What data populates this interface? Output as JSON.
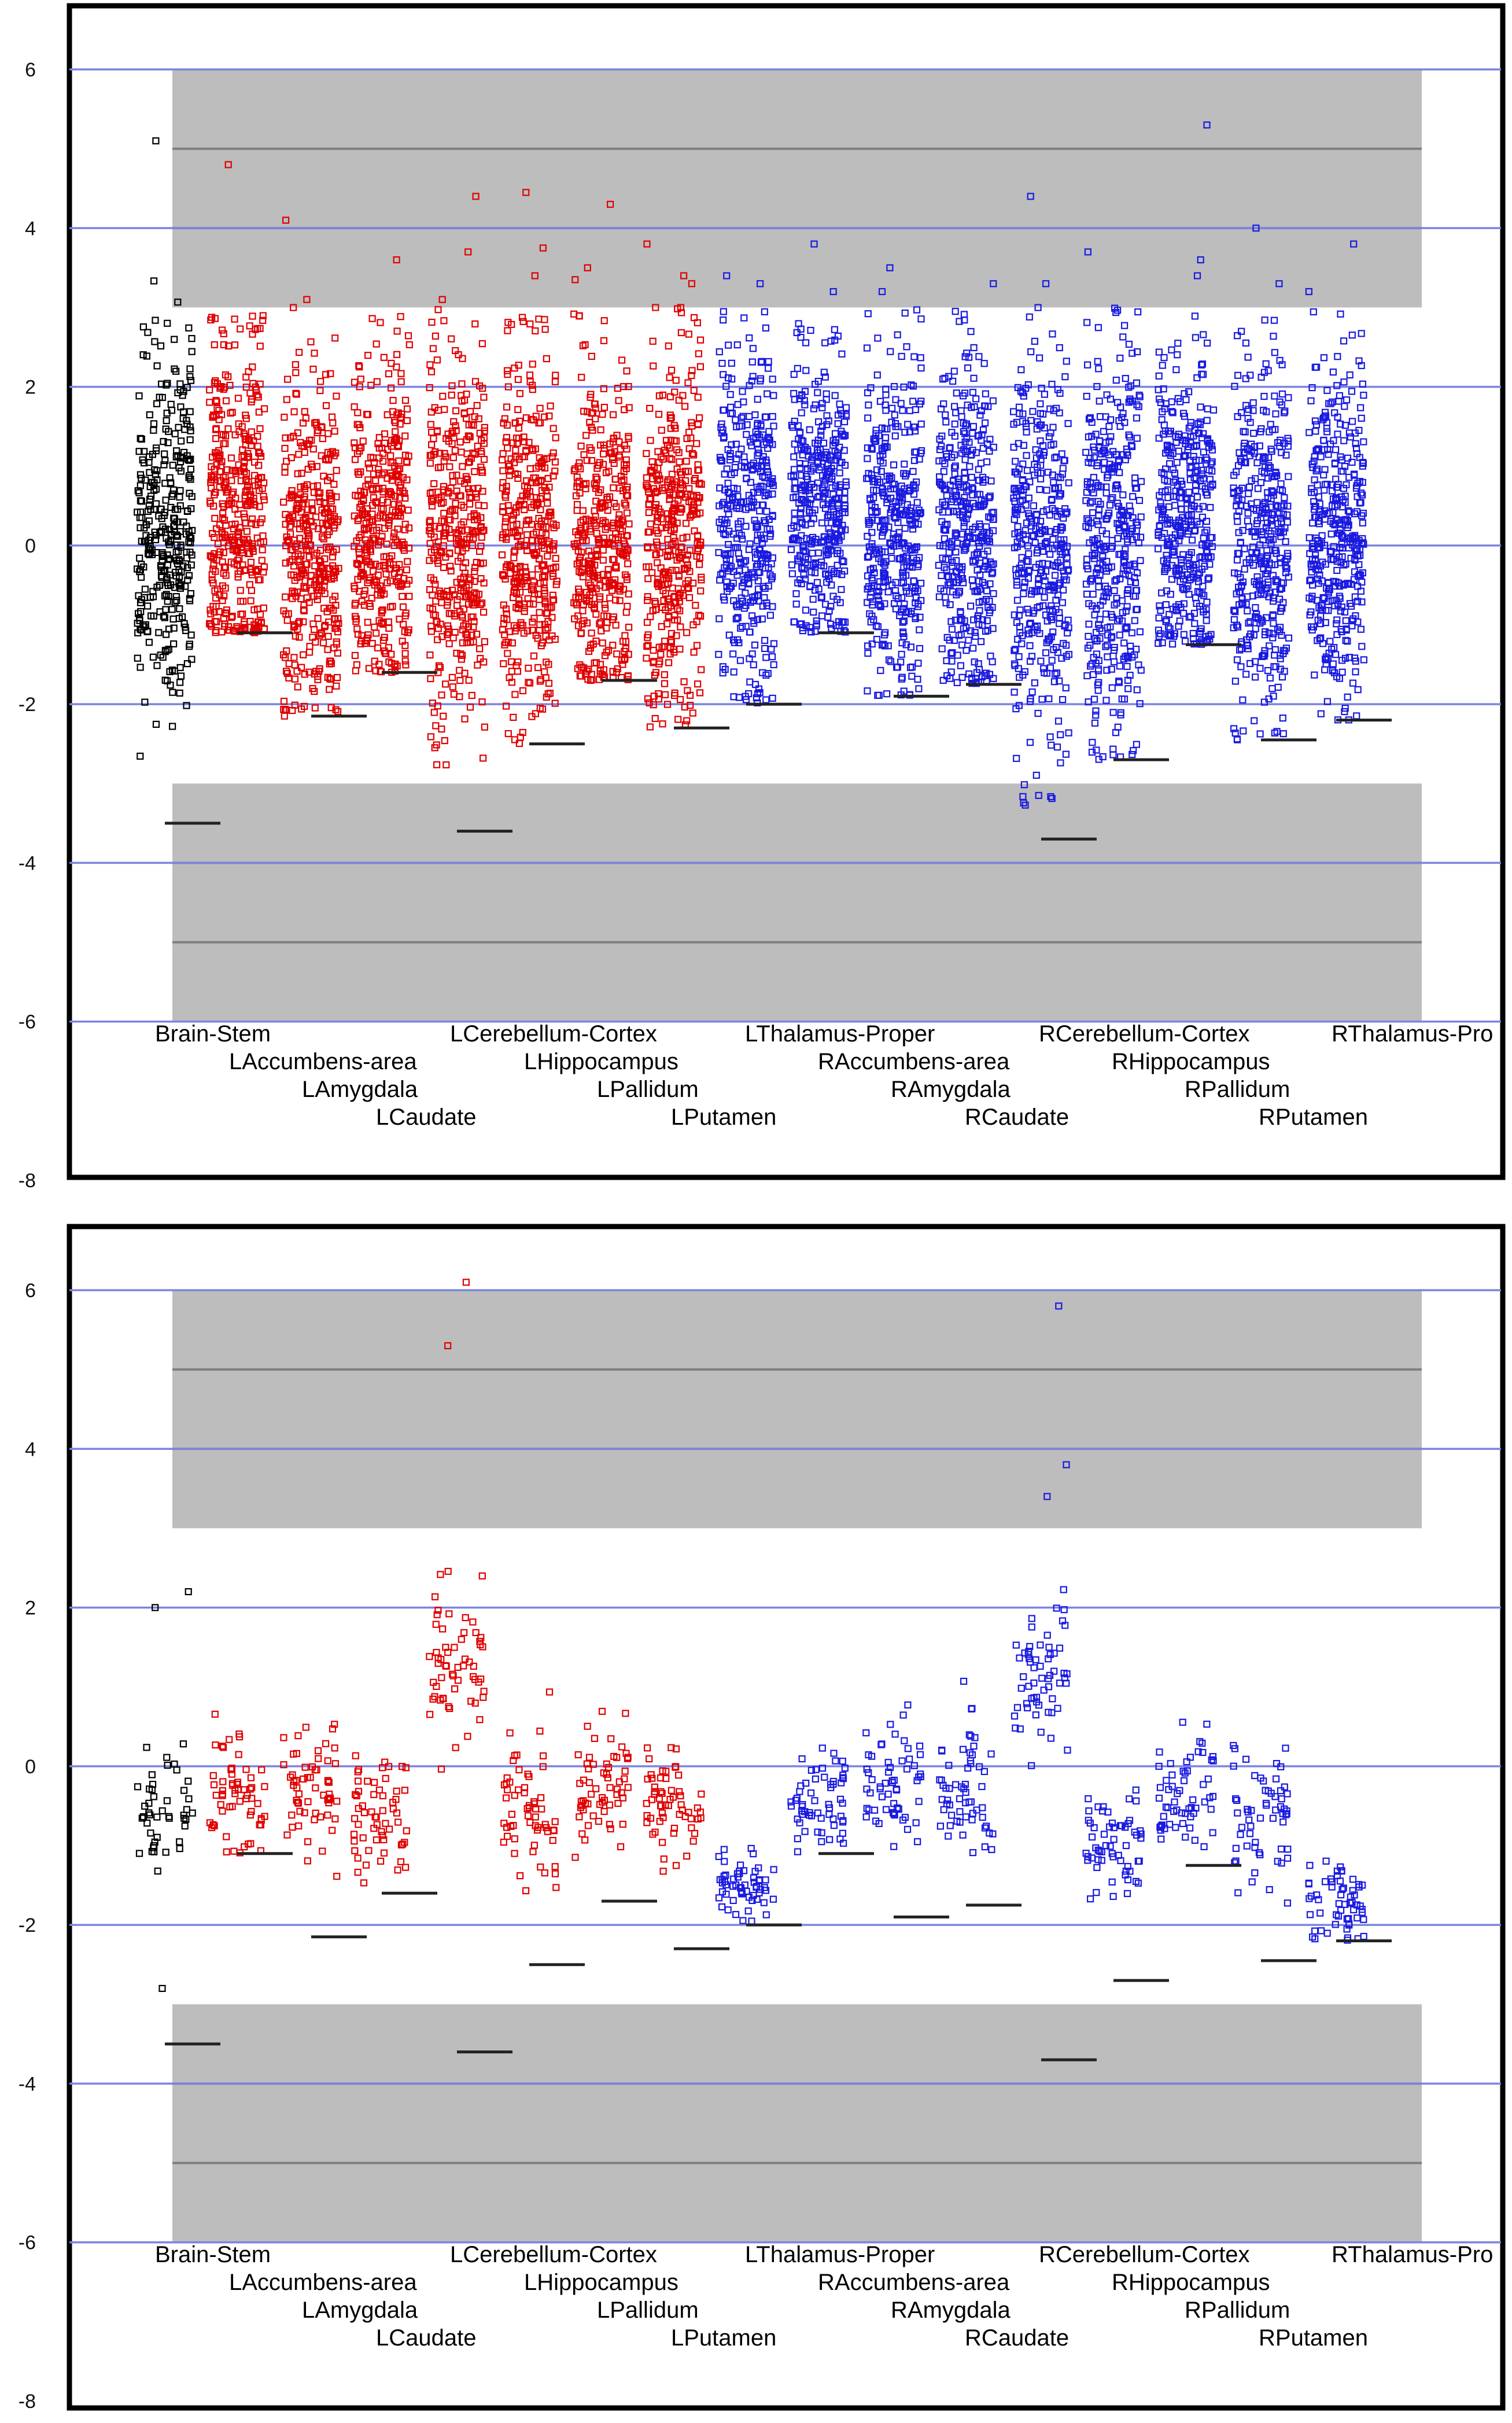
{
  "chart_data": [
    {
      "type": "scatter",
      "title": "",
      "xlabel": "",
      "ylabel": "",
      "ylim": [
        -8,
        6
      ],
      "yticks": [
        6,
        4,
        2,
        0,
        -2,
        -4,
        -6,
        -8
      ],
      "grid": true,
      "shaded_bands": [
        [
          3,
          6
        ],
        [
          -6,
          -3
        ]
      ],
      "band_lines": [
        5,
        4,
        -4,
        -5
      ],
      "categories": [
        "Brain-Stem",
        "LAccumbens-area",
        "LAmygdala",
        "LCaudate",
        "LCerebellum-Cortex",
        "LHippocampus",
        "LPallidum",
        "LPutamen",
        "LThalamus-Proper",
        "RAccumbens-area",
        "RAmygdala",
        "RCaudate",
        "RCerebellum-Cortex",
        "RHippocampus",
        "RPallidum",
        "RPutamen",
        "RThalamus-Pro"
      ],
      "category_colors": [
        "#000000",
        "#e00000",
        "#e00000",
        "#e00000",
        "#e00000",
        "#e00000",
        "#e00000",
        "#e00000",
        "#1a1ae0",
        "#1a1ae0",
        "#1a1ae0",
        "#1a1ae0",
        "#1a1ae0",
        "#1a1ae0",
        "#1a1ae0",
        "#1a1ae0",
        "#1a1ae0"
      ],
      "thresholds": [
        -3.5,
        -1.1,
        -2.15,
        -1.6,
        -3.6,
        -2.5,
        -1.7,
        -2.3,
        -2.0,
        -1.1,
        -1.9,
        -1.75,
        -3.7,
        -2.7,
        -1.25,
        -2.45,
        -2.2
      ],
      "series": [
        {
          "name": "",
          "distribution": {
            "center": 0.2,
            "spread_low": 1.3,
            "spread_high": 1.6,
            "min": -3.4,
            "max": 3.5
          },
          "count": 340,
          "outliers": [
            5.1
          ]
        },
        {
          "name": "",
          "distribution": {
            "center": 0.3,
            "spread_low": 1.4,
            "spread_high": 1.5,
            "min": -1.1,
            "max": 2.9
          },
          "count": 380,
          "outliers": [
            4.8
          ]
        },
        {
          "name": "",
          "distribution": {
            "center": 0.0,
            "spread_low": 1.5,
            "spread_high": 1.5,
            "min": -2.15,
            "max": 3.0
          },
          "count": 380,
          "outliers": [
            4.1,
            3.1
          ]
        },
        {
          "name": "",
          "distribution": {
            "center": 0.2,
            "spread_low": 1.4,
            "spread_high": 1.5,
            "min": -1.6,
            "max": 3.0
          },
          "count": 380,
          "outliers": [
            3.6
          ]
        },
        {
          "name": "",
          "distribution": {
            "center": 0.0,
            "spread_low": 1.6,
            "spread_high": 1.6,
            "min": -2.8,
            "max": 3.0
          },
          "count": 380,
          "outliers": [
            4.4,
            3.7,
            3.1
          ]
        },
        {
          "name": "",
          "distribution": {
            "center": 0.1,
            "spread_low": 1.5,
            "spread_high": 1.5,
            "min": -2.5,
            "max": 2.9
          },
          "count": 380,
          "outliers": [
            4.45,
            3.75,
            3.4
          ]
        },
        {
          "name": "",
          "distribution": {
            "center": 0.1,
            "spread_low": 1.4,
            "spread_high": 1.5,
            "min": -1.7,
            "max": 3.0
          },
          "count": 380,
          "outliers": [
            4.3,
            3.5,
            3.35
          ]
        },
        {
          "name": "",
          "distribution": {
            "center": 0.1,
            "spread_low": 1.5,
            "spread_high": 1.5,
            "min": -2.3,
            "max": 3.0
          },
          "count": 380,
          "outliers": [
            3.8,
            3.3,
            3.4
          ]
        },
        {
          "name": "",
          "distribution": {
            "center": 0.3,
            "spread_low": 1.4,
            "spread_high": 1.5,
            "min": -2.0,
            "max": 3.0
          },
          "count": 380,
          "outliers": [
            3.4,
            3.3
          ]
        },
        {
          "name": "",
          "distribution": {
            "center": 0.4,
            "spread_low": 1.4,
            "spread_high": 1.4,
            "min": -1.1,
            "max": 2.8
          },
          "count": 380,
          "outliers": [
            3.8,
            3.2
          ]
        },
        {
          "name": "",
          "distribution": {
            "center": 0.2,
            "spread_low": 1.5,
            "spread_high": 1.5,
            "min": -1.9,
            "max": 3.0
          },
          "count": 380,
          "outliers": [
            3.5,
            3.2
          ]
        },
        {
          "name": "",
          "distribution": {
            "center": 0.2,
            "spread_low": 1.5,
            "spread_high": 1.5,
            "min": -1.75,
            "max": 3.0
          },
          "count": 380,
          "outliers": [
            3.3
          ]
        },
        {
          "name": "",
          "distribution": {
            "center": 0.0,
            "spread_low": 1.7,
            "spread_high": 1.6,
            "min": -3.3,
            "max": 3.0
          },
          "count": 380,
          "outliers": [
            4.4,
            3.3
          ]
        },
        {
          "name": "",
          "distribution": {
            "center": 0.0,
            "spread_low": 1.6,
            "spread_high": 1.6,
            "min": -2.7,
            "max": 3.0
          },
          "count": 380,
          "outliers": [
            3.7
          ]
        },
        {
          "name": "",
          "distribution": {
            "center": 0.4,
            "spread_low": 1.3,
            "spread_high": 1.5,
            "min": -1.25,
            "max": 3.0
          },
          "count": 380,
          "outliers": [
            5.3,
            3.6,
            3.4
          ]
        },
        {
          "name": "",
          "distribution": {
            "center": 0.1,
            "spread_low": 1.5,
            "spread_high": 1.5,
            "min": -2.45,
            "max": 3.0
          },
          "count": 380,
          "outliers": [
            4.0,
            3.3
          ]
        },
        {
          "name": "",
          "distribution": {
            "center": 0.1,
            "spread_low": 1.5,
            "spread_high": 1.5,
            "min": -2.2,
            "max": 3.0
          },
          "count": 380,
          "outliers": [
            3.8,
            3.2
          ]
        }
      ]
    },
    {
      "type": "scatter",
      "title": "",
      "xlabel": "",
      "ylabel": "",
      "ylim": [
        -8,
        6
      ],
      "yticks": [
        6,
        4,
        2,
        0,
        -2,
        -4,
        -6,
        -8
      ],
      "grid": true,
      "shaded_bands": [
        [
          3,
          6
        ],
        [
          -6,
          -3
        ]
      ],
      "band_lines": [
        5,
        4,
        -4,
        -5
      ],
      "categories": [
        "Brain-Stem",
        "LAccumbens-area",
        "LAmygdala",
        "LCaudate",
        "LCerebellum-Cortex",
        "LHippocampus",
        "LPallidum",
        "LPutamen",
        "LThalamus-Proper",
        "RAccumbens-area",
        "RAmygdala",
        "RCaudate",
        "RCerebellum-Cortex",
        "RHippocampus",
        "RPallidum",
        "RPutamen",
        "RThalamus-Pro"
      ],
      "category_colors": [
        "#000000",
        "#e00000",
        "#e00000",
        "#e00000",
        "#e00000",
        "#e00000",
        "#e00000",
        "#e00000",
        "#1a1ae0",
        "#1a1ae0",
        "#1a1ae0",
        "#1a1ae0",
        "#1a1ae0",
        "#1a1ae0",
        "#1a1ae0",
        "#1a1ae0",
        "#1a1ae0"
      ],
      "thresholds": [
        -3.5,
        -1.1,
        -2.15,
        -1.6,
        -3.6,
        -2.5,
        -1.7,
        -2.3,
        -2.0,
        -1.1,
        -1.9,
        -1.75,
        -3.7,
        -2.7,
        -1.25,
        -2.45,
        -2.2
      ],
      "series": [
        {
          "name": "",
          "distribution": {
            "center": -0.6,
            "spread_low": 0.5,
            "spread_high": 0.5,
            "min": -2.05,
            "max": 0.4
          },
          "count": 45,
          "outliers": [
            2.2,
            2.0,
            -2.8
          ]
        },
        {
          "name": "",
          "distribution": {
            "center": -0.5,
            "spread_low": 0.5,
            "spread_high": 0.6,
            "min": -1.1,
            "max": 1.0
          },
          "count": 60,
          "outliers": []
        },
        {
          "name": "",
          "distribution": {
            "center": -0.3,
            "spread_low": 0.6,
            "spread_high": 0.6,
            "min": -1.9,
            "max": 1.1
          },
          "count": 60,
          "outliers": []
        },
        {
          "name": "",
          "distribution": {
            "center": -0.6,
            "spread_low": 0.5,
            "spread_high": 0.5,
            "min": -1.6,
            "max": 0.5
          },
          "count": 60,
          "outliers": []
        },
        {
          "name": "",
          "distribution": {
            "center": 1.2,
            "spread_low": 0.6,
            "spread_high": 0.7,
            "min": -0.8,
            "max": 2.9
          },
          "count": 60,
          "outliers": [
            6.1,
            5.3
          ]
        },
        {
          "name": "",
          "distribution": {
            "center": -0.6,
            "spread_low": 0.6,
            "spread_high": 0.6,
            "min": -2.2,
            "max": 1.2
          },
          "count": 60,
          "outliers": []
        },
        {
          "name": "",
          "distribution": {
            "center": -0.3,
            "spread_low": 0.5,
            "spread_high": 0.6,
            "min": -1.6,
            "max": 1.7
          },
          "count": 60,
          "outliers": []
        },
        {
          "name": "",
          "distribution": {
            "center": -0.5,
            "spread_low": 0.5,
            "spread_high": 0.5,
            "min": -1.6,
            "max": 0.9
          },
          "count": 60,
          "outliers": []
        },
        {
          "name": "",
          "distribution": {
            "center": -1.5,
            "spread_low": 0.3,
            "spread_high": 0.3,
            "min": -2.0,
            "max": -0.1
          },
          "count": 60,
          "outliers": []
        },
        {
          "name": "",
          "distribution": {
            "center": -0.4,
            "spread_low": 0.5,
            "spread_high": 0.5,
            "min": -1.1,
            "max": 1.1
          },
          "count": 60,
          "outliers": []
        },
        {
          "name": "",
          "distribution": {
            "center": -0.2,
            "spread_low": 0.5,
            "spread_high": 0.6,
            "min": -1.4,
            "max": 1.8
          },
          "count": 60,
          "outliers": []
        },
        {
          "name": "",
          "distribution": {
            "center": -0.3,
            "spread_low": 0.5,
            "spread_high": 0.6,
            "min": -1.7,
            "max": 1.5
          },
          "count": 60,
          "outliers": []
        },
        {
          "name": "",
          "distribution": {
            "center": 1.2,
            "spread_low": 0.6,
            "spread_high": 0.6,
            "min": -0.2,
            "max": 2.9
          },
          "count": 60,
          "outliers": [
            5.8,
            3.8,
            3.4
          ]
        },
        {
          "name": "",
          "distribution": {
            "center": -0.9,
            "spread_low": 0.5,
            "spread_high": 0.5,
            "min": -2.7,
            "max": 1.3
          },
          "count": 60,
          "outliers": []
        },
        {
          "name": "",
          "distribution": {
            "center": -0.4,
            "spread_low": 0.5,
            "spread_high": 0.6,
            "min": -1.3,
            "max": 2.0
          },
          "count": 60,
          "outliers": []
        },
        {
          "name": "",
          "distribution": {
            "center": -0.6,
            "spread_low": 0.6,
            "spread_high": 0.5,
            "min": -2.4,
            "max": 1.0
          },
          "count": 60,
          "outliers": []
        },
        {
          "name": "",
          "distribution": {
            "center": -1.8,
            "spread_low": 0.3,
            "spread_high": 0.4,
            "min": -2.2,
            "max": 0.0
          },
          "count": 60,
          "outliers": []
        }
      ]
    }
  ]
}
